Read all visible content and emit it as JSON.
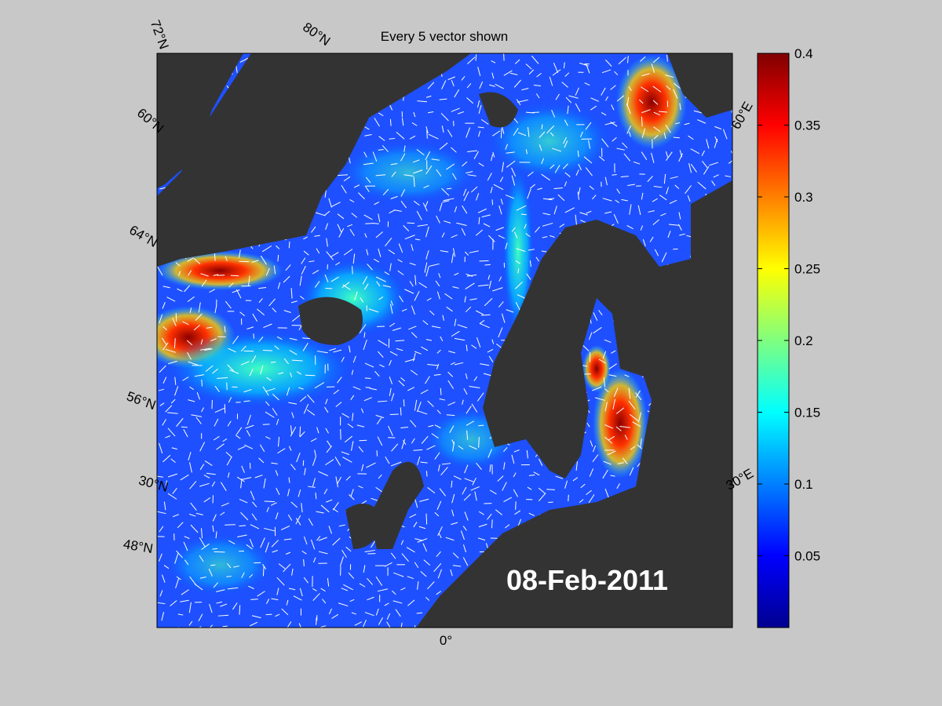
{
  "title": "Every 5 vector shown",
  "date": "08-Feb-2011",
  "grid_labels": [
    "72°N",
    "80°N",
    "60°N",
    "64°N",
    "56°N",
    "30°N",
    "48°N",
    "60°E",
    "30°E",
    "0°"
  ],
  "colorbar": {
    "lim": [
      0,
      0.4
    ],
    "ticks": [
      0.05,
      0.1,
      0.15,
      0.2,
      0.25,
      0.3,
      0.35,
      0.4
    ]
  }
}
